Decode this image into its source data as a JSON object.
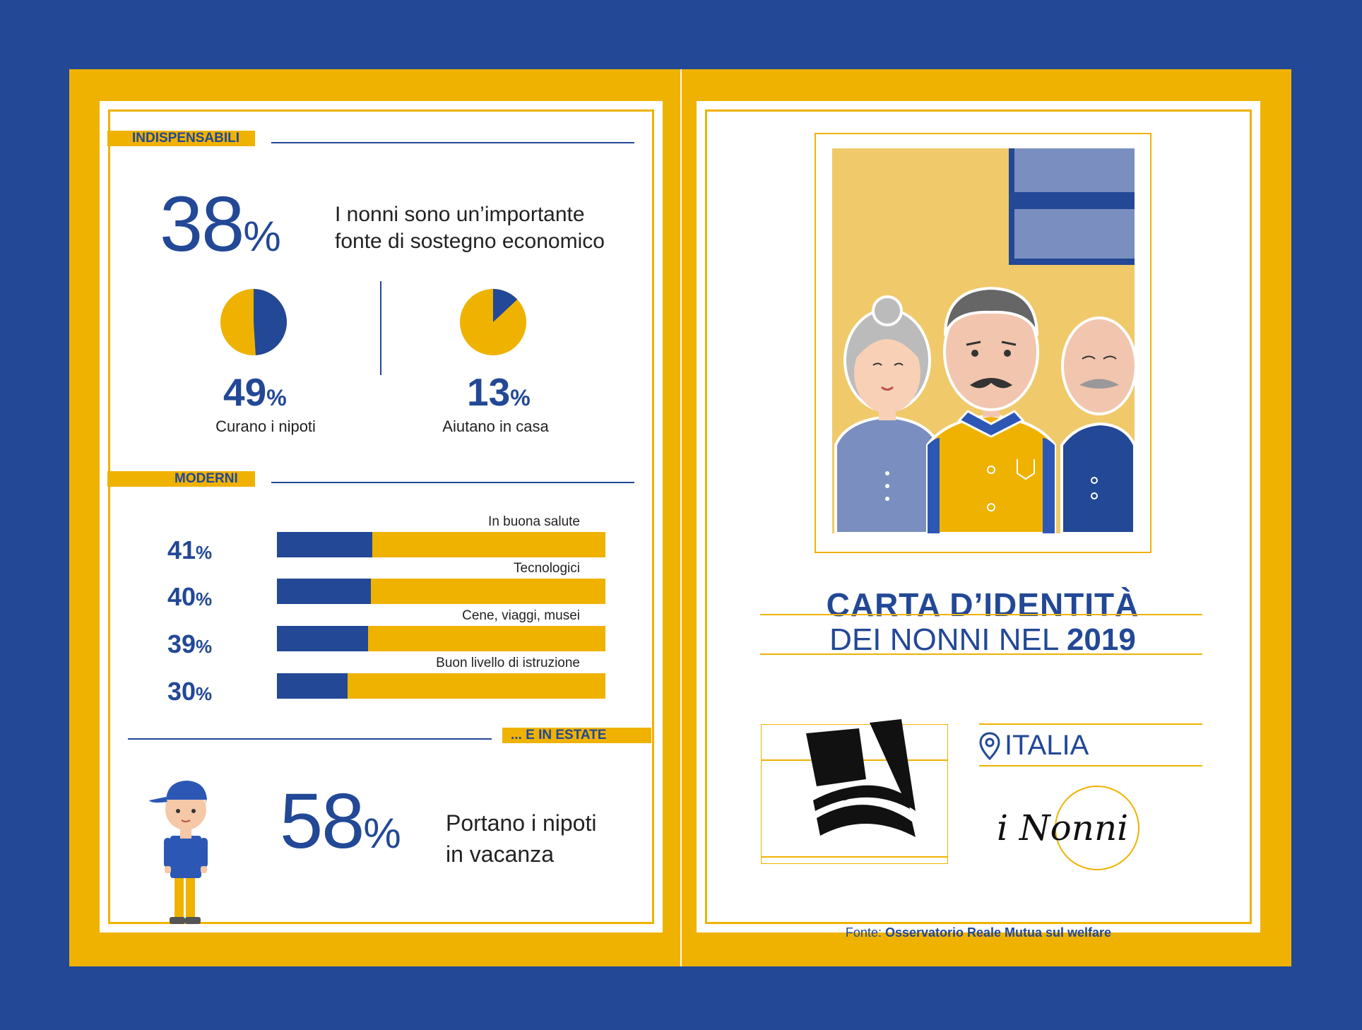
{
  "left": {
    "section1": {
      "label": "INDISPENSABILI",
      "headline_value": "38",
      "headline_unit": "%",
      "headline_text_line1": "I nonni sono un’importante",
      "headline_text_line2": "fonte di sostegno economico",
      "stats": [
        {
          "value": "49",
          "unit": "%",
          "caption": "Curano i nipoti",
          "fraction": 0.49
        },
        {
          "value": "13",
          "unit": "%",
          "caption": "Aiutano in casa",
          "fraction": 0.13
        }
      ]
    },
    "section2": {
      "label": "MODERNI",
      "bars": [
        {
          "value": "41",
          "unit": "%",
          "caption": "In buona salute",
          "fraction": 0.29
        },
        {
          "value": "40",
          "unit": "%",
          "caption": "Tecnologici",
          "fraction": 0.285
        },
        {
          "value": "39",
          "unit": "%",
          "caption": "Cene, viaggi, musei",
          "fraction": 0.278
        },
        {
          "value": "30",
          "unit": "%",
          "caption": "Buon livello di istruzione",
          "fraction": 0.214
        }
      ]
    },
    "section3": {
      "label": "... E IN ESTATE",
      "value": "58",
      "unit": "%",
      "text_line1": "Portano i nipoti",
      "text_line2": "in vacanza"
    }
  },
  "right": {
    "title_line1": "CARTA D’IDENTITÀ",
    "title_line2_prefix": "DEI NONNI NEL ",
    "title_line2_year": "2019",
    "location": "ITALIA",
    "signature": "i Nonni",
    "source_prefix": "Fonte: ",
    "source_name": "Osservatorio Reale Mutua sul welfare"
  },
  "colors": {
    "blue": "#224896",
    "yellow": "#EFB200",
    "light_yellow": "#F0C96A",
    "slate_blue": "#7A8FBF"
  },
  "icons": [
    "pie-chart-icon",
    "location-pin-icon",
    "grandparents-illustration",
    "boy-illustration",
    "logo-mark"
  ]
}
